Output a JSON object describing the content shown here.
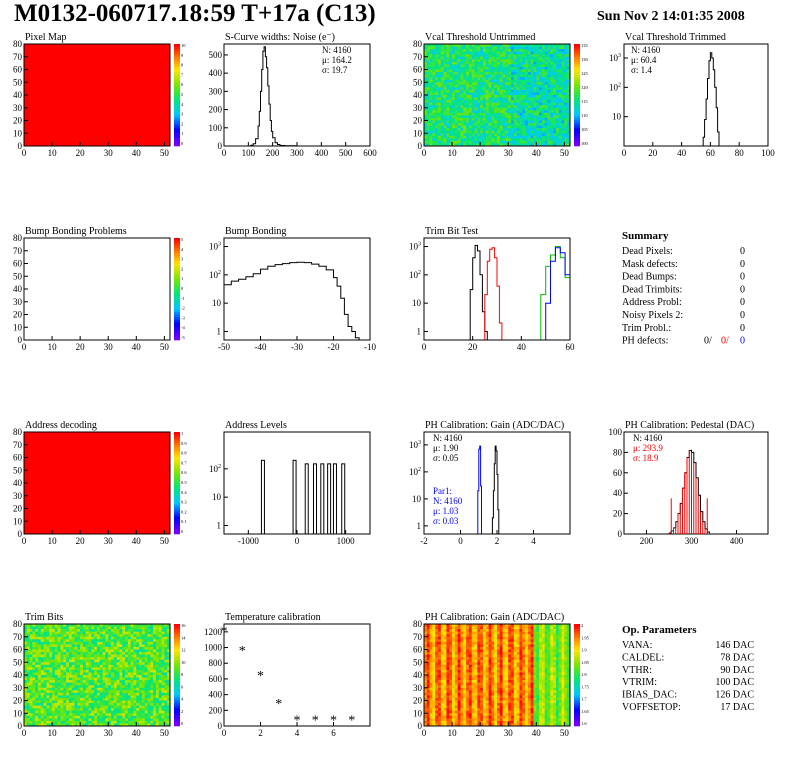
{
  "header": {
    "title": "M0132-060717.18:59 T+17a (C13)",
    "date": "Sun Nov  2 14:01:35 2008"
  },
  "colors": {
    "red": "#ff0000",
    "blue": "#0000ff",
    "green": "#00bb00",
    "black": "#000000"
  },
  "chart_data": [
    {
      "id": "pixel-map",
      "title": "Pixel Map",
      "type": "heatmap",
      "xlim": [
        0,
        52
      ],
      "ylim": [
        0,
        80
      ],
      "xticks": [
        0,
        10,
        20,
        30,
        40,
        50
      ],
      "yticks": [
        0,
        10,
        20,
        30,
        40,
        50,
        60,
        70,
        80
      ],
      "palette": "uniform-red",
      "zticks": [
        "10",
        "9",
        "8",
        "7",
        "6",
        "5",
        "4",
        "3",
        "2",
        "1",
        "0"
      ]
    },
    {
      "id": "scurve-noise",
      "title": "S-Curve widths: Noise (e⁻)",
      "type": "line",
      "xlim": [
        0,
        600
      ],
      "ylim": [
        0,
        560
      ],
      "xticks": [
        0,
        100,
        200,
        300,
        400,
        500,
        600
      ],
      "yticks": [
        0,
        100,
        200,
        300,
        400,
        500
      ],
      "stats": [
        "N: 4160",
        "μ: 164.2",
        "σ: 19.7"
      ],
      "series": [
        {
          "x": [
            0,
            100,
            110,
            120,
            130,
            140,
            145,
            150,
            155,
            160,
            165,
            170,
            175,
            180,
            185,
            190,
            195,
            200,
            210,
            220,
            230,
            250,
            270,
            300,
            600
          ],
          "y": [
            0,
            0,
            4,
            12,
            40,
            110,
            190,
            300,
            420,
            520,
            545,
            490,
            430,
            330,
            230,
            140,
            80,
            45,
            18,
            8,
            3,
            1,
            1,
            0,
            0
          ]
        }
      ]
    },
    {
      "id": "vcal-untrimmed",
      "title": "Vcal Threshold Untrimmed",
      "type": "heatmap",
      "xlim": [
        0,
        52
      ],
      "ylim": [
        0,
        80
      ],
      "xticks": [
        0,
        10,
        20,
        30,
        40,
        50
      ],
      "yticks": [
        0,
        10,
        20,
        30,
        40,
        50,
        60,
        70,
        80
      ],
      "palette": "noise-green-cyan",
      "zticks": [
        "135",
        "130",
        "125",
        "120",
        "115",
        "110",
        "105",
        "100"
      ]
    },
    {
      "id": "vcal-trimmed",
      "title": "Vcal Threshold Trimmed",
      "type": "line",
      "log_y": true,
      "xlim": [
        0,
        100
      ],
      "ylim": [
        1,
        3000
      ],
      "xticks": [
        0,
        20,
        40,
        60,
        80,
        100
      ],
      "yticks": [
        10,
        100,
        1000
      ],
      "stats": [
        "N: 4160",
        "μ: 60.4",
        "σ:  1.4"
      ],
      "series": [
        {
          "x": [
            0,
            54,
            55,
            56,
            57,
            58,
            59,
            60,
            61,
            62,
            63,
            64,
            65,
            66,
            100
          ],
          "y": [
            0,
            0,
            2,
            8,
            40,
            200,
            800,
            1500,
            1000,
            400,
            100,
            20,
            3,
            0,
            0
          ]
        }
      ]
    },
    {
      "id": "bump-problems",
      "title": "Bump Bonding Problems",
      "type": "heatmap",
      "xlim": [
        0,
        52
      ],
      "ylim": [
        0,
        80
      ],
      "xticks": [
        0,
        10,
        20,
        30,
        40,
        50
      ],
      "yticks": [
        0,
        10,
        20,
        30,
        40,
        50,
        60,
        70,
        80
      ],
      "palette": "empty",
      "zticks": [
        "5",
        "4",
        "3",
        "2",
        "1",
        "0",
        "-1",
        "-2",
        "-3",
        "-4",
        "-5"
      ]
    },
    {
      "id": "bump-bonding",
      "title": "Bump Bonding",
      "type": "line",
      "log_y": true,
      "xlim": [
        -50,
        -10
      ],
      "ylim": [
        0.5,
        2000
      ],
      "xticks": [
        -50,
        -40,
        -30,
        -20,
        -10
      ],
      "yticks": [
        1,
        10,
        100,
        1000
      ],
      "series": [
        {
          "x": [
            -50,
            -48,
            -46,
            -44,
            -42,
            -40,
            -38,
            -36,
            -34,
            -32,
            -30,
            -28,
            -26,
            -24,
            -22,
            -20,
            -19,
            -18,
            -17,
            -16,
            -15,
            -14,
            -13,
            -12
          ],
          "y": [
            45,
            60,
            70,
            85,
            110,
            160,
            200,
            230,
            250,
            270,
            280,
            270,
            240,
            200,
            150,
            80,
            40,
            15,
            4,
            1.5,
            1,
            0.6,
            0.5,
            0.5
          ]
        }
      ]
    },
    {
      "id": "trim-bit-test",
      "title": "Trim Bit Test",
      "type": "line",
      "log_y": true,
      "xlim": [
        0,
        60
      ],
      "ylim": [
        0.5,
        2000
      ],
      "xticks": [
        0,
        20,
        40,
        60
      ],
      "yticks": [
        1,
        10,
        100,
        1000
      ],
      "series": [
        {
          "color": "#000000",
          "x": [
            18,
            19,
            20,
            21,
            22,
            23,
            24,
            25,
            26
          ],
          "y": [
            0.5,
            30,
            400,
            1100,
            700,
            100,
            5,
            1,
            0.5
          ]
        },
        {
          "color": "#ff0000",
          "x": [
            24,
            25,
            26,
            27,
            28,
            29,
            30,
            31,
            32
          ],
          "y": [
            0.5,
            20,
            300,
            800,
            900,
            400,
            40,
            2,
            0.5
          ]
        },
        {
          "color": "#00bb00",
          "x": [
            46,
            48,
            50,
            52,
            54,
            56,
            58,
            60
          ],
          "y": [
            0.5,
            20,
            200,
            500,
            1000,
            400,
            80,
            0.5
          ]
        },
        {
          "color": "#0000ff",
          "x": [
            48,
            50,
            52,
            54,
            56,
            58,
            60
          ],
          "y": [
            0.5,
            10,
            300,
            900,
            600,
            100,
            0.5
          ]
        }
      ]
    },
    {
      "id": "summary",
      "type": "table",
      "title": "Summary",
      "rows": [
        {
          "label": "Dead Pixels:",
          "value": "0"
        },
        {
          "label": "Mask defects:",
          "value": "0"
        },
        {
          "label": "Dead Bumps:",
          "value": "0"
        },
        {
          "label": "Dead Trimbits:",
          "value": "0"
        },
        {
          "label": "Address Probl:",
          "value": "0"
        },
        {
          "label": "Noisy Pixels 2:",
          "value": "0"
        },
        {
          "label": "Trim Probl.:",
          "value": "0"
        }
      ],
      "ph_defects": {
        "label": "PH defects:",
        "black": "0/",
        "red": "0/",
        "blue": "0"
      }
    },
    {
      "id": "address-decoding",
      "title": "Address decoding",
      "type": "heatmap",
      "xlim": [
        0,
        52
      ],
      "ylim": [
        0,
        80
      ],
      "xticks": [
        0,
        10,
        20,
        30,
        40,
        50
      ],
      "yticks": [
        0,
        10,
        20,
        30,
        40,
        50,
        60,
        70,
        80
      ],
      "palette": "uniform-red",
      "zticks": [
        "1",
        "0.9",
        "0.8",
        "0.7",
        "0.6",
        "0.5",
        "0.4",
        "0.3",
        "0.2",
        "0.1",
        "0"
      ]
    },
    {
      "id": "address-levels",
      "title": "Address Levels",
      "type": "bar",
      "log_y": true,
      "xlim": [
        -1500,
        1500
      ],
      "ylim": [
        0.5,
        2000
      ],
      "xticks": [
        -1000,
        0,
        1000
      ],
      "yticks": [
        1,
        10,
        100
      ],
      "series": [
        {
          "x": [
            -700,
            -50,
            200,
            370,
            520,
            660,
            780,
            950
          ],
          "y": [
            200,
            200,
            150,
            150,
            150,
            150,
            150,
            150
          ]
        }
      ]
    },
    {
      "id": "ph-gain",
      "title": "PH Calibration: Gain (ADC/DAC)",
      "type": "line",
      "log_y": true,
      "xlim": [
        -2,
        6
      ],
      "ylim": [
        0.5,
        3000
      ],
      "xticks": [
        -2,
        0,
        2,
        4
      ],
      "yticks": [
        1,
        10,
        100,
        1000
      ],
      "stats": [
        "N: 4160",
        "μ: 1.90",
        "σ: 0.05"
      ],
      "stats2": [
        "Par1:",
        "N: 4160",
        "μ: 1.03",
        "σ: 0.03"
      ],
      "series": [
        {
          "color": "#000000",
          "x": [
            1.7,
            1.75,
            1.8,
            1.85,
            1.9,
            1.95,
            2.0,
            2.05,
            2.1
          ],
          "y": [
            0.5,
            2,
            20,
            200,
            900,
            600,
            80,
            4,
            0.5
          ]
        },
        {
          "color": "#0000ff",
          "x": [
            0.9,
            0.95,
            1.0,
            1.05,
            1.1,
            1.15
          ],
          "y": [
            0.5,
            20,
            700,
            900,
            30,
            0.5
          ]
        }
      ]
    },
    {
      "id": "ph-pedestal",
      "title": "PH Calibration: Pedestal (DAC)",
      "type": "line",
      "xlim": [
        150,
        470
      ],
      "ylim": [
        0,
        100
      ],
      "xticks": [
        200,
        300,
        400
      ],
      "yticks": [
        0,
        20,
        40,
        60,
        80,
        100
      ],
      "stats": [
        "N: 4160",
        "μ: 293.9",
        "σ: 18.9"
      ],
      "series": [
        {
          "x": [
            250,
            255,
            260,
            265,
            270,
            275,
            280,
            285,
            290,
            295,
            300,
            305,
            310,
            315,
            320,
            325,
            330,
            335,
            340
          ],
          "y": [
            1,
            3,
            6,
            12,
            20,
            30,
            45,
            60,
            75,
            82,
            80,
            70,
            55,
            38,
            22,
            12,
            5,
            2,
            1
          ]
        }
      ]
    },
    {
      "id": "trim-bits",
      "title": "Trim Bits",
      "type": "heatmap",
      "xlim": [
        0,
        52
      ],
      "ylim": [
        0,
        80
      ],
      "xticks": [
        0,
        10,
        20,
        30,
        40,
        50
      ],
      "yticks": [
        0,
        10,
        20,
        30,
        40,
        50,
        60,
        70,
        80
      ],
      "palette": "noise-green",
      "zticks": [
        "16",
        "14",
        "12",
        "10",
        "8",
        "6",
        "4",
        "2",
        "0"
      ]
    },
    {
      "id": "temp-calibration",
      "title": "Temperature calibration",
      "type": "scatter",
      "xlim": [
        0,
        8
      ],
      "ylim": [
        0,
        1300
      ],
      "xticks": [
        0,
        2,
        4,
        6
      ],
      "yticks": [
        0,
        200,
        400,
        600,
        800,
        1000,
        1200
      ],
      "series": [
        {
          "x": [
            0,
            1,
            2,
            3,
            4,
            5,
            6,
            7
          ],
          "y": [
            1220,
            970,
            650,
            290,
            80,
            80,
            80,
            80
          ]
        }
      ]
    },
    {
      "id": "ph-gain-map",
      "title": "PH Calibration: Gain (ADC/DAC)",
      "type": "heatmap",
      "xlim": [
        0,
        52
      ],
      "ylim": [
        0,
        80
      ],
      "xticks": [
        0,
        10,
        20,
        30,
        40,
        50
      ],
      "yticks": [
        0,
        10,
        20,
        30,
        40,
        50,
        60,
        70,
        80
      ],
      "palette": "columns-red-yellow",
      "zticks": [
        "2",
        "1.95",
        "1.9",
        "1.85",
        "1.8",
        "1.75",
        "1.7",
        "1.65",
        "1.6"
      ]
    },
    {
      "id": "op-params",
      "type": "table",
      "title": "Op. Parameters",
      "rows": [
        {
          "label": "VANA:",
          "value": "146 DAC"
        },
        {
          "label": "CALDEL:",
          "value": "78 DAC"
        },
        {
          "label": "VTHR:",
          "value": "90 DAC"
        },
        {
          "label": "VTRIM:",
          "value": "100 DAC"
        },
        {
          "label": "IBIAS_DAC:",
          "value": "126 DAC"
        },
        {
          "label": "VOFFSETOP:",
          "value": "17 DAC"
        }
      ]
    }
  ]
}
